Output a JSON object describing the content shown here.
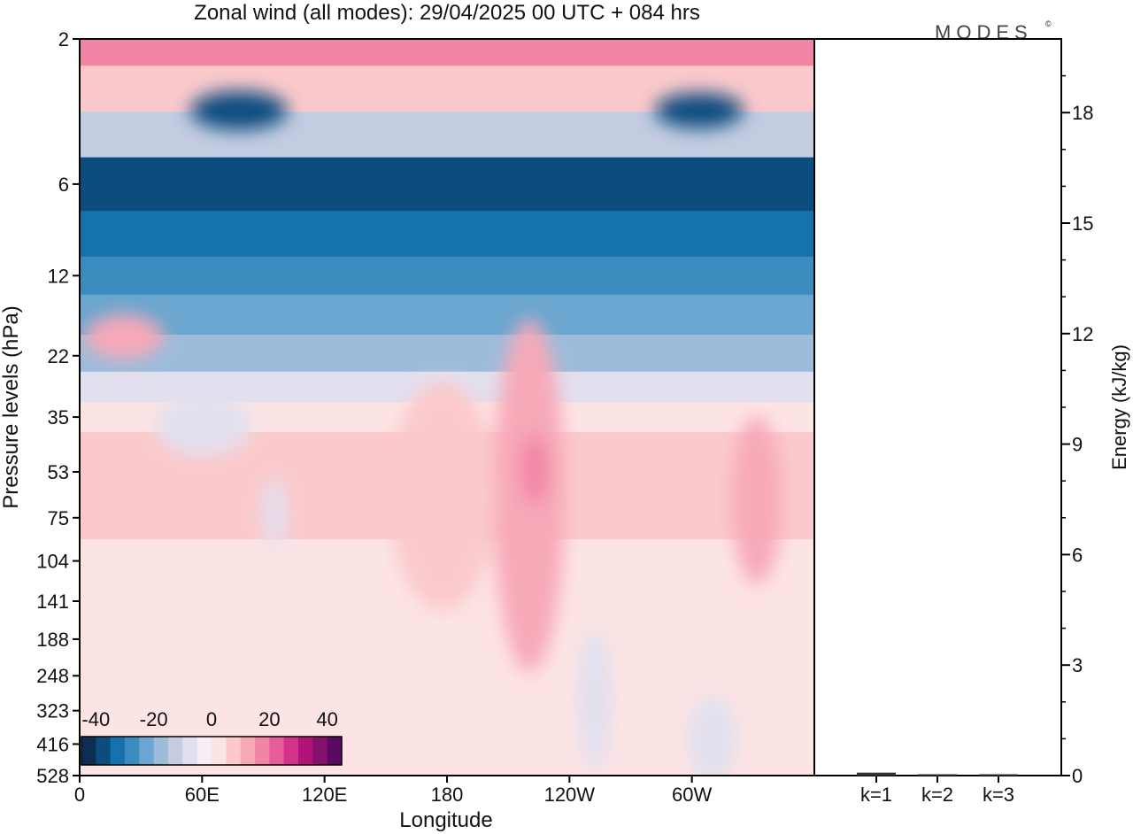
{
  "chart_data": {
    "type": "heatmap",
    "title": "Zonal wind (all modes):  29/04/2025  00 UTC  + 084 hrs",
    "xlabel": "Longitude",
    "ylabel": "Pressure levels (hPa)",
    "x_ticks": [
      "0",
      "60E",
      "120E",
      "180",
      "120W",
      "60W"
    ],
    "y_ticks": [
      "2",
      "6",
      "12",
      "22",
      "35",
      "53",
      "75",
      "104",
      "141",
      "188",
      "248",
      "323",
      "416",
      "528"
    ],
    "colorbar": {
      "tick_labels": [
        "-40",
        "-20",
        "0",
        "20",
        "40"
      ],
      "colors": [
        "#0b2f52",
        "#0c4d80",
        "#1672ad",
        "#3a8cbe",
        "#6aa6cf",
        "#9dbcdb",
        "#c4cce2",
        "#e2e0ee",
        "#f6eef5",
        "#fde4e4",
        "#fbc9cc",
        "#f7a9b8",
        "#f284a6",
        "#e85c98",
        "#d33489",
        "#b1137a",
        "#85106d",
        "#5a0a63"
      ]
    },
    "wind_rows": [
      {
        "level": "2",
        "value": 16
      },
      {
        "level": "3",
        "value": 6
      },
      {
        "level": "4",
        "value": -12
      },
      {
        "level": "6",
        "value": -36
      },
      {
        "level": "9",
        "value": -34
      },
      {
        "level": "12",
        "value": -28
      },
      {
        "level": "16",
        "value": -24
      },
      {
        "level": "22",
        "value": -17
      },
      {
        "level": "28",
        "value": -9
      },
      {
        "level": "35",
        "value": 0
      },
      {
        "level": "44",
        "value": 6
      },
      {
        "level": "53",
        "value": 9
      },
      {
        "level": "63",
        "value": 9
      },
      {
        "level": "75",
        "value": 7
      },
      {
        "level": "104",
        "value": 2
      },
      {
        "level": "141",
        "value": 3
      },
      {
        "level": "188",
        "value": 3
      },
      {
        "level": "248",
        "value": 2
      },
      {
        "level": "323",
        "value": 1
      },
      {
        "level": "416",
        "value": 0
      },
      {
        "level": "528",
        "value": 0
      }
    ],
    "energy_panel": {
      "ylabel": "Energy (kJ/kg)",
      "y_ticks": [
        "0",
        "3",
        "6",
        "9",
        "12",
        "15",
        "18"
      ],
      "ylim": [
        0,
        20
      ],
      "categories": [
        "k=1",
        "k=2",
        "k=3"
      ],
      "values": [
        0.08,
        0.03,
        0.02
      ]
    }
  },
  "logo_text": "MODES",
  "logo_mark": "©"
}
